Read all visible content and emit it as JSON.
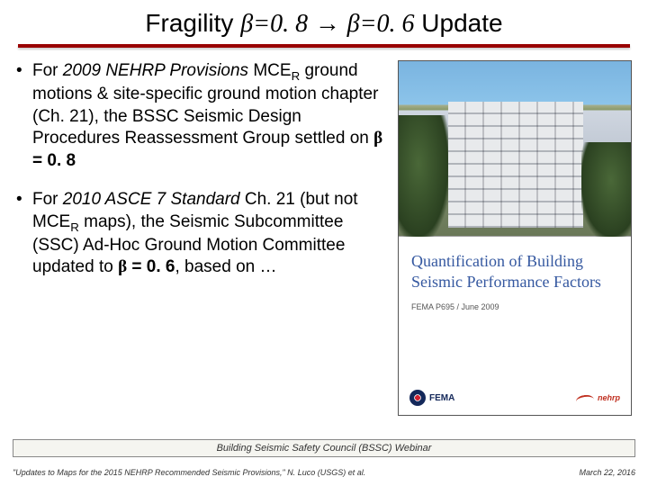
{
  "title": {
    "prefix": "Fragility ",
    "beta1": "β",
    "eq1": "=0. 8",
    "arrow": " → ",
    "beta2": "β",
    "eq2": "=0. 6",
    "suffix": "  Update"
  },
  "bullets": [
    {
      "parts": [
        {
          "t": "For ",
          "i": false
        },
        {
          "t": "2009 NEHRP Provisions ",
          "i": true
        },
        {
          "t": "MCE",
          "i": false
        },
        {
          "t": "R",
          "i": false,
          "sub": true
        },
        {
          "t": " ground motions & site-specific ground motion chapter (Ch. 21), the BSSC Seismic Design Procedures Reassessment Group settled on ",
          "i": false
        },
        {
          "t": "β",
          "i": false,
          "bold": true,
          "sym": true
        },
        {
          "t": " = 0. 8",
          "i": false,
          "bold": true
        }
      ]
    },
    {
      "parts": [
        {
          "t": "For ",
          "i": false
        },
        {
          "t": "2010 ASCE 7 Standard ",
          "i": true
        },
        {
          "t": "Ch. 21 (but not MCE",
          "i": false
        },
        {
          "t": "R",
          "i": false,
          "sub": true
        },
        {
          "t": " maps), the Seismic Subcommittee (SSC) Ad-Hoc Ground Motion Committee updated to ",
          "i": false
        },
        {
          "t": "β",
          "i": false,
          "bold": true,
          "sym": true
        },
        {
          "t": " = 0. 6",
          "i": false,
          "bold": true
        },
        {
          "t": ", based on …",
          "i": false
        }
      ]
    }
  ],
  "cover": {
    "title": "Quantification of Building Seismic Performance Factors",
    "sub": "FEMA P695 / June 2009",
    "fema": "FEMA",
    "nehrp": "nehrp"
  },
  "footer_bar": "Building Seismic Safety Council (BSSC) Webinar",
  "bottom": {
    "left": "\"Updates to Maps for the 2015 NEHRP Recommended Seismic Provisions,\" N. Luco (USGS) et al.",
    "right": "March 22, 2016"
  }
}
